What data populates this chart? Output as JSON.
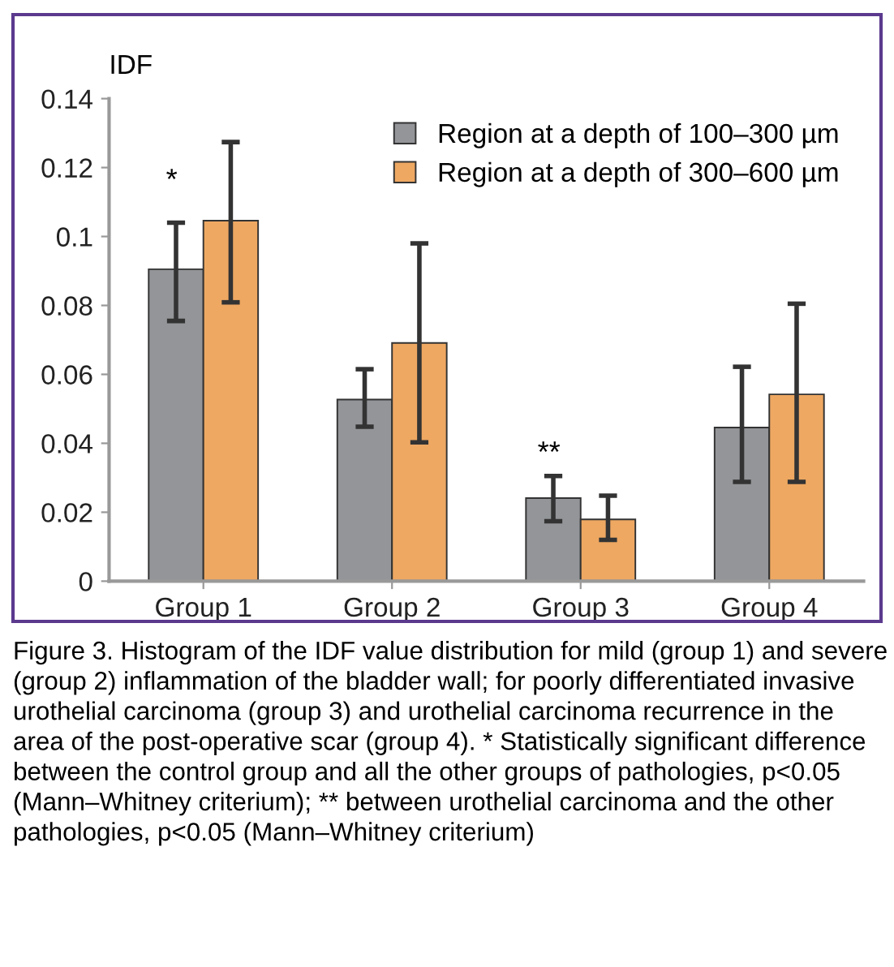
{
  "chart_data": {
    "type": "bar",
    "ylabel": "IDF",
    "categories": [
      "Group 1",
      "Group 2",
      "Group 3",
      "Group 4"
    ],
    "series": [
      {
        "name": "Region at a depth of 100–300 µm",
        "color": "#939598",
        "values": [
          0.0905,
          0.0527,
          0.0241,
          0.0446
        ],
        "errors": [
          [
            0.0755,
            0.104
          ],
          [
            0.0448,
            0.0615
          ],
          [
            0.0174,
            0.0305
          ],
          [
            0.0288,
            0.0622
          ]
        ]
      },
      {
        "name": "Region at a depth of 300–600 µm",
        "color": "#eea862",
        "values": [
          0.1046,
          0.0691,
          0.0179,
          0.0542
        ],
        "errors": [
          [
            0.0809,
            0.1274
          ],
          [
            0.0403,
            0.098
          ],
          [
            0.012,
            0.0248
          ],
          [
            0.0288,
            0.0805
          ]
        ]
      }
    ],
    "ylim": [
      0,
      0.14
    ],
    "yticks": [
      0,
      0.02,
      0.04,
      0.06,
      0.08,
      0.1,
      0.12,
      0.14
    ],
    "grid": false,
    "legend": "top right",
    "annotations": [
      "*",
      "**",
      "Figure 3. Histogram of the IDF value distribution for mild (group 1) and severe (group 2) inflammation of the bladder wall; for poorly differentiated invasive urothelial carcinoma (group 3) and urothelial carcinoma recurrence in the area of the post-operative scar (group 4). * Statistically significant difference between the control group and all the other groups of pathologies, p<0.05 (Mann–Whitney criterium); ** between urothelial carcinoma and the other pathologies, p<0.05 (Mann–Whitney criterium)"
    ]
  }
}
